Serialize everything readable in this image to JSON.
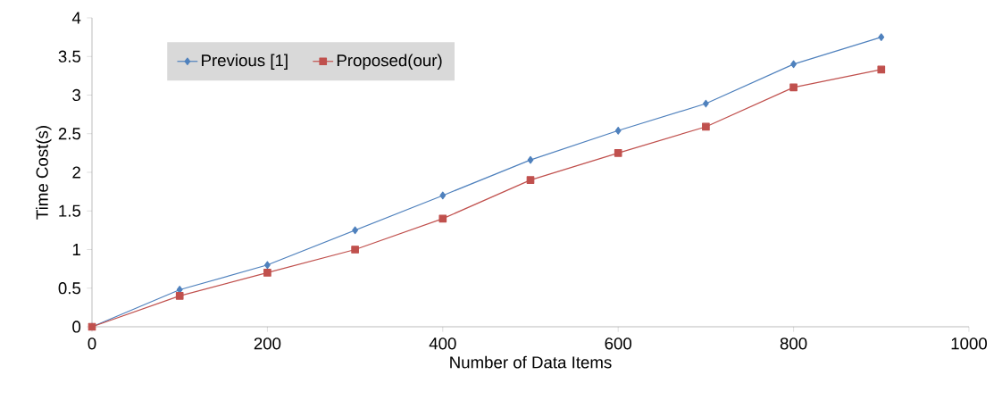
{
  "chart_data": {
    "type": "line",
    "xlabel": "Number of Data Items",
    "ylabel": "Time Cost(s)",
    "x": [
      0,
      100,
      200,
      300,
      400,
      500,
      600,
      700,
      800,
      900
    ],
    "series": [
      {
        "name": "Previous [1]",
        "color": "#4f81bd",
        "marker": "diamond",
        "values": [
          0,
          0.48,
          0.8,
          1.25,
          1.7,
          2.16,
          2.54,
          2.89,
          3.4,
          3.75
        ]
      },
      {
        "name": "Proposed(our)",
        "color": "#c0504d",
        "marker": "square",
        "values": [
          0,
          0.4,
          0.7,
          1.0,
          1.4,
          1.9,
          2.25,
          2.59,
          3.1,
          3.33
        ]
      }
    ],
    "xlim": [
      0,
      1000
    ],
    "xticks": [
      0,
      200,
      400,
      600,
      800,
      1000
    ],
    "ylim": [
      0,
      4
    ],
    "yticks": [
      0,
      0.5,
      1,
      1.5,
      2,
      2.5,
      3,
      3.5,
      4
    ],
    "grid": false,
    "legend": "top left",
    "line_style": "solid"
  }
}
